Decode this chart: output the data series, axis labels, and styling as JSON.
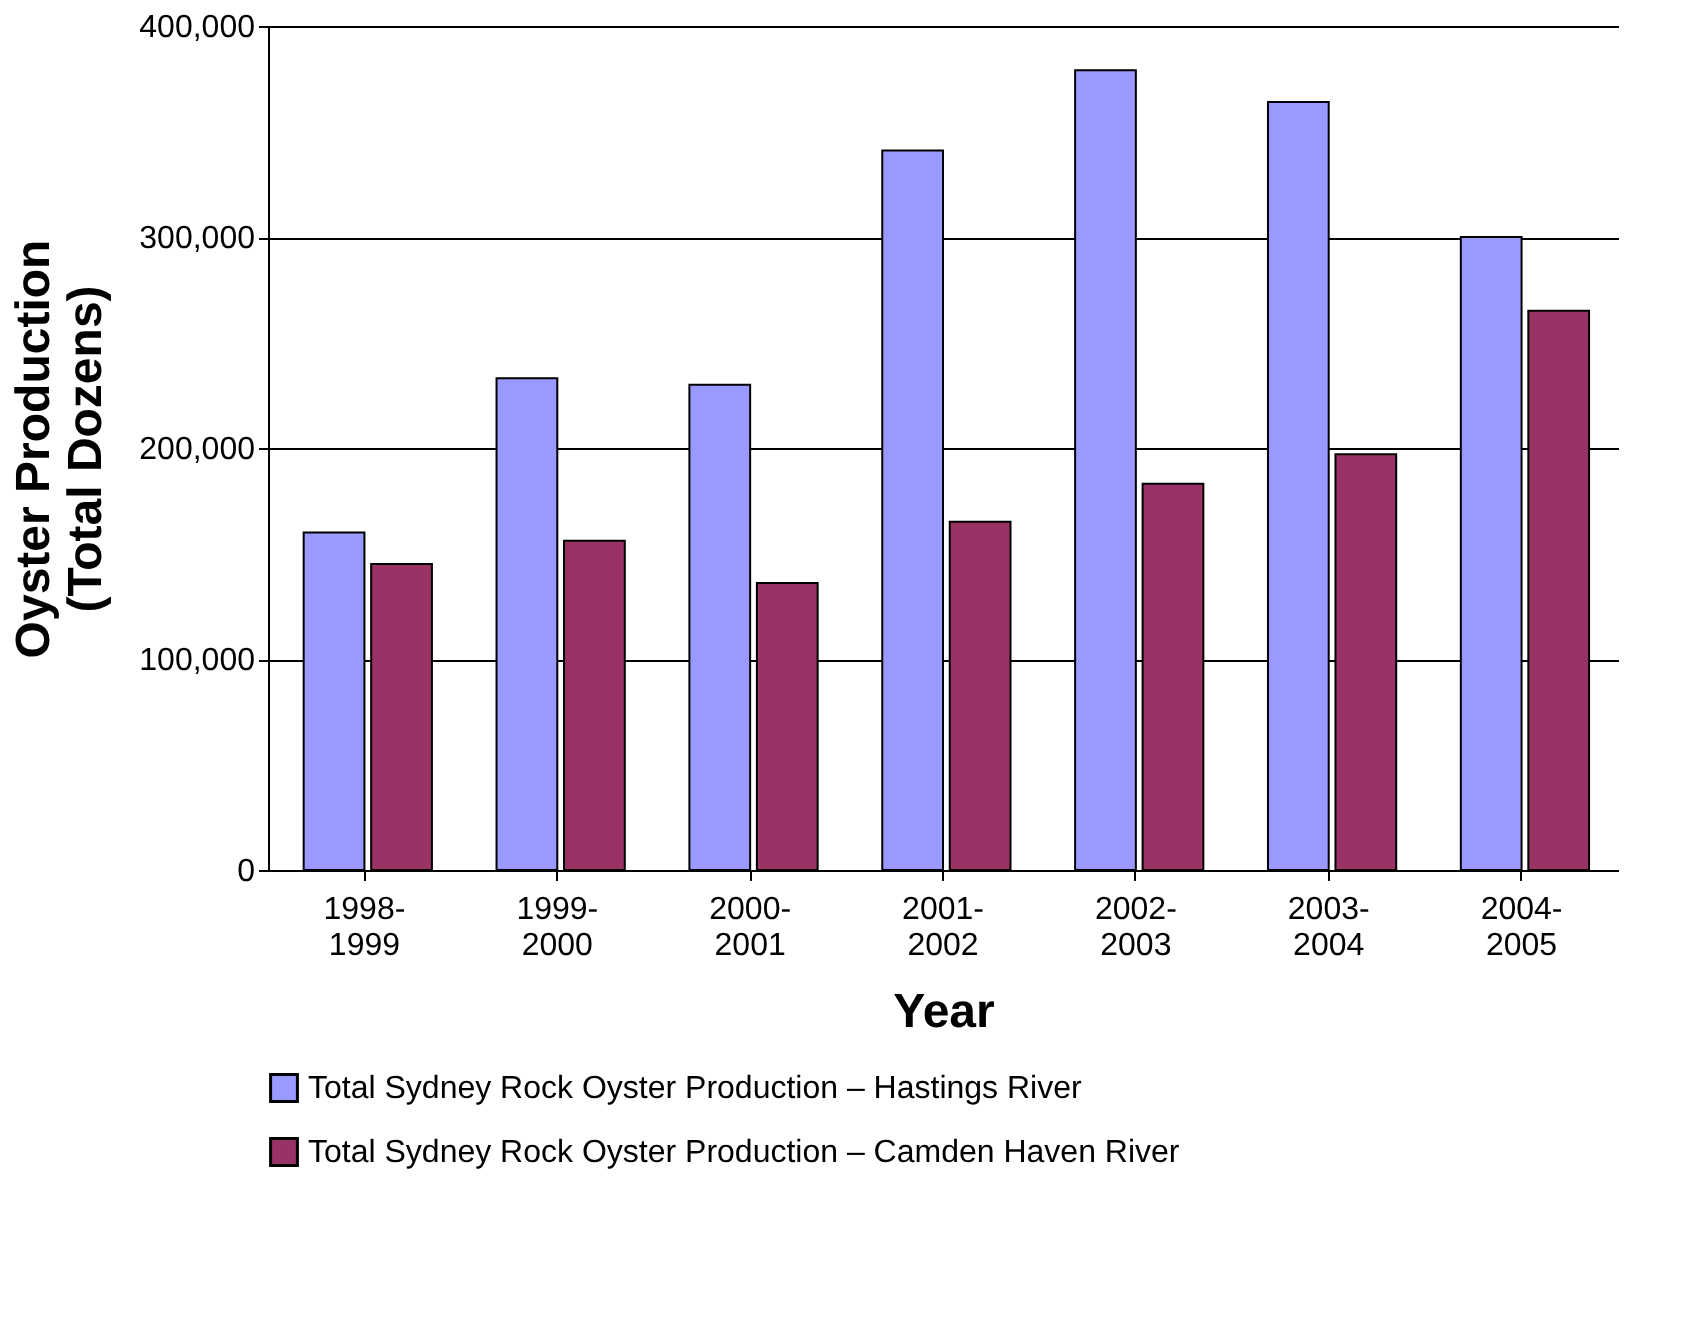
{
  "chart_data": {
    "type": "bar",
    "xlabel": "Year",
    "ylabel": "Oyster Production (Total Dozens)",
    "categories": [
      "1998-1999",
      "1999-2000",
      "2000-2001",
      "2001-2002",
      "2002-2003",
      "2003-2004",
      "2004-2005"
    ],
    "series": [
      {
        "name": "Total Sydney Rock Oyster Production – Hastings River",
        "color": "#9999ff",
        "values": [
          160000,
          233000,
          230000,
          341000,
          379000,
          364000,
          300000
        ]
      },
      {
        "name": "Total Sydney Rock Oyster Production – Camden Haven River",
        "color": "#993366",
        "values": [
          145000,
          156000,
          136000,
          165000,
          183000,
          197000,
          265000
        ]
      }
    ],
    "ylim": [
      0,
      400000
    ],
    "yticks": [
      0,
      {
        "value": 100000,
        "label": "100,000"
      },
      {
        "value": 200000,
        "label": "200,000"
      },
      {
        "value": 300000,
        "label": "300,000"
      },
      {
        "value": 400000,
        "label": "400,000"
      }
    ],
    "grid": "y",
    "legend": "bottom"
  }
}
